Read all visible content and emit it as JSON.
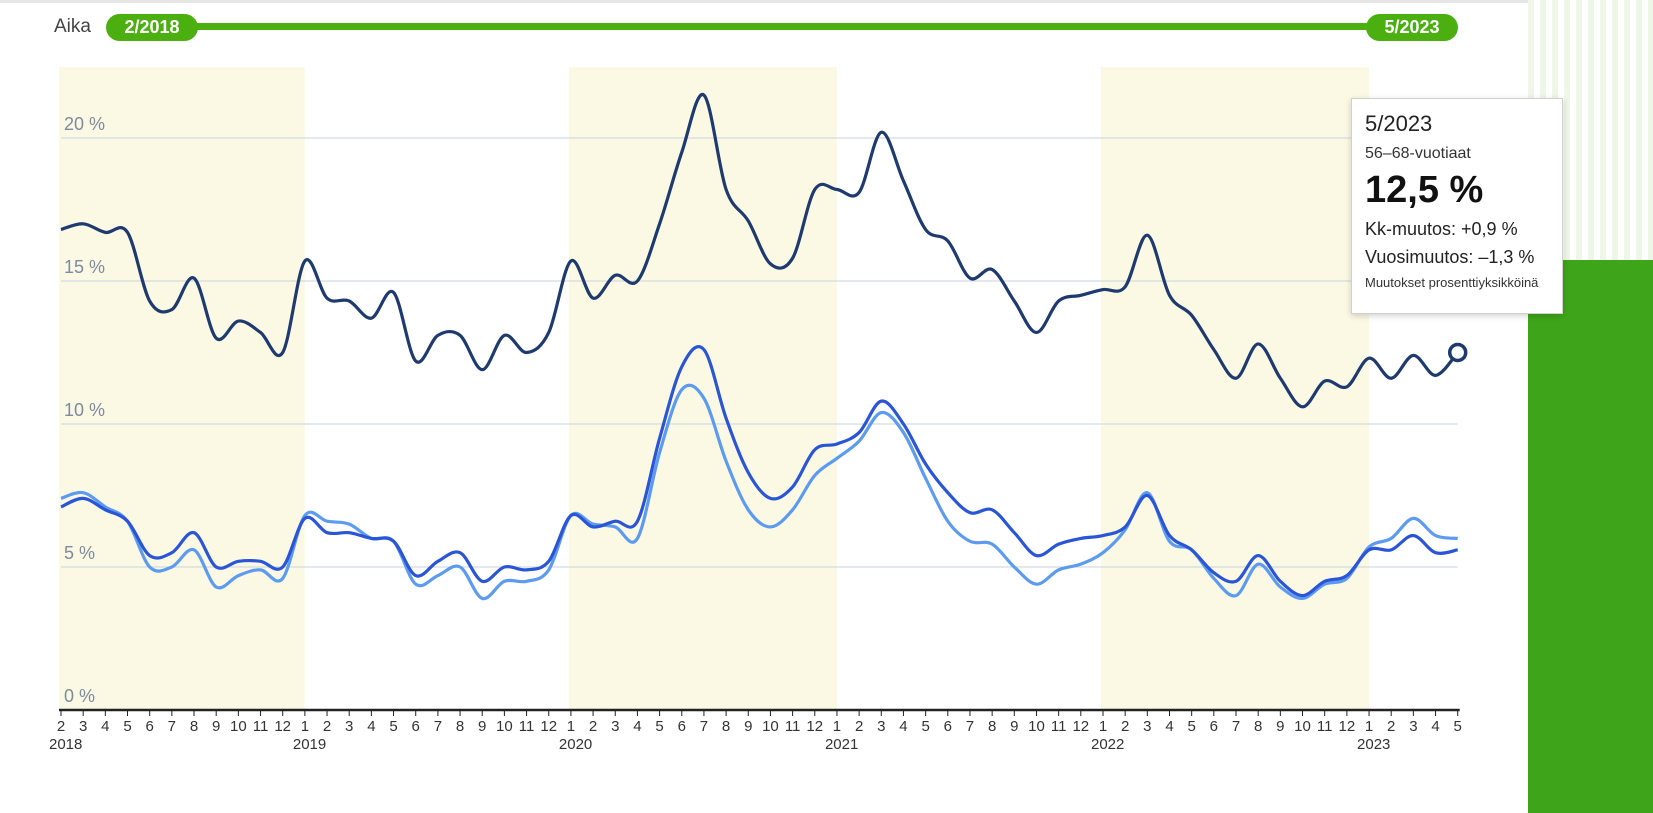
{
  "time_filter": {
    "label": "Aika",
    "start": "2/2018",
    "end": "5/2023"
  },
  "tooltip": {
    "date": "5/2023",
    "group": "56–68-vuotiaat",
    "value": "12,5 %",
    "monthly_change": "Kk-muutos: +0,9 %",
    "yearly_change": "Vuosimuutos: –1,3 %",
    "note": "Muutokset prosenttiyksikköinä"
  },
  "colors": {
    "dark_series": "#1e3a6e",
    "mid_series": "#2a55d6",
    "light_series": "#5d9bf0",
    "year_band": "#fbf9e4",
    "grid": "#c9d3e0",
    "axis": "#222222",
    "accent": "#4caf10"
  },
  "chart_data": {
    "type": "line",
    "ylim": [
      0,
      22.5
    ],
    "grid": true,
    "y_ticks": [
      {
        "value": 0,
        "label": "0 %"
      },
      {
        "value": 5,
        "label": "5 %"
      },
      {
        "value": 10,
        "label": "10 %"
      },
      {
        "value": 15,
        "label": "15 %"
      },
      {
        "value": 20,
        "label": "20 %"
      }
    ],
    "x_tick_labels": [
      "2",
      "3",
      "4",
      "5",
      "6",
      "7",
      "8",
      "9",
      "10",
      "11",
      "12",
      "1",
      "2",
      "3",
      "4",
      "5",
      "6",
      "7",
      "8",
      "9",
      "10",
      "11",
      "12",
      "1",
      "2",
      "3",
      "4",
      "5",
      "6",
      "7",
      "8",
      "9",
      "10",
      "11",
      "12",
      "1",
      "2",
      "3",
      "4",
      "5",
      "6",
      "7",
      "8",
      "9",
      "10",
      "11",
      "12",
      "1",
      "2",
      "3",
      "4",
      "5",
      "6",
      "7",
      "8",
      "9",
      "10",
      "11",
      "12",
      "1",
      "2",
      "3",
      "4",
      "5"
    ],
    "year_labels": [
      {
        "index": 0,
        "label": "2018"
      },
      {
        "index": 11,
        "label": "2019"
      },
      {
        "index": 23,
        "label": "2020"
      },
      {
        "index": 35,
        "label": "2021"
      },
      {
        "index": 47,
        "label": "2022"
      },
      {
        "index": 59,
        "label": "2023"
      }
    ],
    "shaded_ranges": [
      [
        0,
        11
      ],
      [
        23,
        35
      ],
      [
        47,
        59
      ]
    ],
    "highlight_index": 63,
    "series": [
      {
        "values": [
          16.8,
          17.0,
          16.7,
          16.7,
          14.3,
          14.0,
          15.1,
          13.0,
          13.6,
          13.2,
          12.5,
          15.7,
          14.4,
          14.3,
          13.7,
          14.6,
          12.2,
          13.1,
          13.1,
          11.9,
          13.1,
          12.5,
          13.2,
          15.7,
          14.4,
          15.2,
          15.0,
          17.0,
          19.5,
          21.5,
          18.2,
          17.1,
          15.6,
          15.8,
          18.2,
          18.2,
          18.1,
          20.2,
          18.5,
          16.8,
          16.4,
          15.1,
          15.4,
          14.3,
          13.2,
          14.3,
          14.5,
          14.7,
          14.8,
          16.6,
          14.5,
          13.8,
          12.6,
          11.6,
          12.8,
          11.6,
          10.6,
          11.5,
          11.3,
          12.3,
          11.6,
          12.4,
          11.7,
          12.5
        ]
      },
      {
        "values": [
          7.1,
          7.4,
          7.0,
          6.6,
          5.4,
          5.5,
          6.2,
          5.0,
          5.2,
          5.2,
          5.0,
          6.7,
          6.2,
          6.2,
          6.0,
          5.9,
          4.7,
          5.2,
          5.5,
          4.5,
          5.0,
          4.9,
          5.2,
          6.8,
          6.4,
          6.6,
          6.6,
          9.5,
          12.0,
          12.6,
          10.2,
          8.3,
          7.4,
          7.8,
          9.1,
          9.3,
          9.7,
          10.8,
          10.0,
          8.6,
          7.6,
          6.9,
          7.0,
          6.2,
          5.4,
          5.8,
          6.0,
          6.1,
          6.4,
          7.5,
          6.1,
          5.6,
          4.8,
          4.5,
          5.4,
          4.5,
          4.0,
          4.5,
          4.7,
          5.6,
          5.6,
          6.1,
          5.5,
          5.6
        ]
      },
      {
        "values": [
          7.4,
          7.6,
          7.1,
          6.6,
          5.0,
          5.0,
          5.6,
          4.3,
          4.7,
          4.9,
          4.6,
          6.8,
          6.6,
          6.5,
          6.0,
          5.9,
          4.4,
          4.7,
          5.0,
          3.9,
          4.5,
          4.5,
          4.9,
          6.8,
          6.5,
          6.4,
          6.0,
          9.0,
          11.2,
          10.9,
          8.7,
          7.0,
          6.4,
          7.0,
          8.2,
          8.8,
          9.4,
          10.4,
          9.7,
          8.1,
          6.6,
          5.9,
          5.8,
          5.0,
          4.4,
          4.9,
          5.1,
          5.5,
          6.3,
          7.6,
          5.9,
          5.6,
          4.6,
          4.0,
          5.1,
          4.3,
          3.9,
          4.4,
          4.6,
          5.7,
          6.0,
          6.7,
          6.1,
          6.0
        ]
      }
    ]
  }
}
